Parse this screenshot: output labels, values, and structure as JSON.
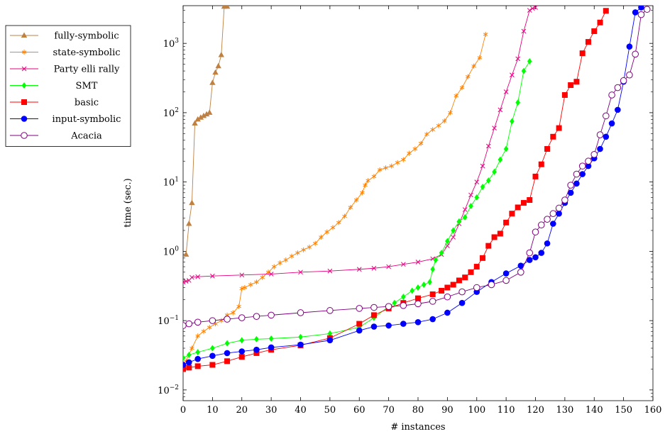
{
  "chart_data": {
    "type": "line",
    "xlabel": "# instances",
    "ylabel": "time (sec.)",
    "x_scale": "linear",
    "y_scale": "log",
    "xlim": [
      0,
      160
    ],
    "ylim": [
      0.007,
      3500
    ],
    "x_ticks": [
      0,
      10,
      20,
      30,
      40,
      50,
      60,
      70,
      80,
      90,
      100,
      110,
      120,
      130,
      140,
      150,
      160
    ],
    "x_tick_labels": [
      "0",
      "10",
      "20",
      "30",
      "40",
      "50",
      "60",
      "70",
      "80",
      "90",
      "100",
      "110",
      "120",
      "130",
      "140",
      "150",
      "160"
    ],
    "y_ticks": [
      0.01,
      0.1,
      1,
      10,
      100,
      1000
    ],
    "y_tick_labels": [
      {
        "base": "10",
        "exp": "−2"
      },
      {
        "base": "10",
        "exp": "−1"
      },
      {
        "base": "10",
        "exp": "0"
      },
      {
        "base": "10",
        "exp": "1"
      },
      {
        "base": "10",
        "exp": "2"
      },
      {
        "base": "10",
        "exp": "3"
      }
    ],
    "grid": false,
    "legend_position": "outside-left-top",
    "series": [
      {
        "name": "fully-symbolic",
        "color": "#bf8040",
        "marker": "triangle",
        "x": [
          1,
          2,
          3,
          4,
          5,
          6,
          7,
          8,
          9,
          10,
          11,
          12,
          13,
          14,
          15
        ],
        "y": [
          0.9,
          2.5,
          5,
          70,
          80,
          85,
          90,
          95,
          100,
          270,
          380,
          470,
          680,
          3400,
          3400
        ]
      },
      {
        "name": "state-symbolic",
        "color": "#ff8000",
        "marker": "asterisk",
        "x": [
          1,
          3,
          5,
          7,
          9,
          11,
          13,
          15,
          17,
          19,
          20,
          21,
          23,
          25,
          27,
          29,
          31,
          33,
          35,
          37,
          39,
          41,
          43,
          45,
          47,
          49,
          51,
          53,
          55,
          57,
          59,
          61,
          62,
          63,
          65,
          67,
          69,
          71,
          73,
          75,
          77,
          79,
          81,
          83,
          85,
          87,
          89,
          91,
          93,
          95,
          97,
          99,
          101,
          103
        ],
        "y": [
          0.026,
          0.04,
          0.06,
          0.07,
          0.08,
          0.09,
          0.1,
          0.12,
          0.13,
          0.16,
          0.29,
          0.3,
          0.33,
          0.36,
          0.42,
          0.5,
          0.6,
          0.68,
          0.75,
          0.85,
          0.95,
          1.05,
          1.15,
          1.3,
          1.6,
          1.9,
          2.2,
          2.6,
          3.2,
          4.3,
          5.5,
          7,
          9,
          10.5,
          12,
          15,
          16,
          17,
          19,
          21,
          26,
          30,
          36,
          49,
          57,
          65,
          76,
          100,
          175,
          230,
          330,
          470,
          620,
          1350
        ]
      },
      {
        "name": "Party elli rally",
        "color": "#e6007e",
        "marker": "cross",
        "x": [
          0,
          1,
          2,
          3,
          5,
          10,
          20,
          30,
          40,
          50,
          60,
          65,
          70,
          75,
          80,
          85,
          88,
          90,
          92,
          94,
          96,
          98,
          100,
          102,
          104,
          106,
          108,
          110,
          112,
          114,
          116,
          118,
          119,
          120
        ],
        "y": [
          0.36,
          0.37,
          0.38,
          0.42,
          0.43,
          0.44,
          0.455,
          0.47,
          0.5,
          0.52,
          0.55,
          0.57,
          0.6,
          0.65,
          0.7,
          0.78,
          0.9,
          1.2,
          1.6,
          2.5,
          4,
          6.5,
          10,
          17,
          33,
          60,
          110,
          200,
          350,
          600,
          1500,
          3000,
          3200,
          3300
        ]
      },
      {
        "name": "SMT",
        "color": "#00ff00",
        "marker": "diamond",
        "x": [
          0,
          2,
          5,
          10,
          15,
          20,
          25,
          30,
          40,
          50,
          60,
          65,
          70,
          72,
          75,
          78,
          80,
          82,
          84,
          85,
          86,
          88,
          90,
          92,
          94,
          96,
          98,
          100,
          102,
          104,
          106,
          108,
          110,
          112,
          114,
          116,
          118
        ],
        "y": [
          0.029,
          0.032,
          0.035,
          0.04,
          0.047,
          0.052,
          0.054,
          0.055,
          0.058,
          0.065,
          0.08,
          0.11,
          0.16,
          0.18,
          0.22,
          0.27,
          0.3,
          0.33,
          0.36,
          0.55,
          0.75,
          0.95,
          1.4,
          2,
          2.7,
          3.1,
          4.5,
          6,
          8.5,
          10.5,
          14,
          21,
          30,
          75,
          140,
          400,
          550
        ]
      },
      {
        "name": "basic",
        "color": "#ff0000",
        "marker": "square",
        "x": [
          0,
          2,
          5,
          10,
          15,
          20,
          25,
          30,
          40,
          50,
          60,
          65,
          70,
          75,
          80,
          85,
          88,
          90,
          92,
          94,
          96,
          98,
          100,
          102,
          104,
          106,
          108,
          110,
          112,
          114,
          116,
          118,
          120,
          122,
          124,
          126,
          128,
          130,
          132,
          134,
          136,
          138,
          140,
          142,
          144
        ],
        "y": [
          0.02,
          0.021,
          0.022,
          0.023,
          0.026,
          0.03,
          0.034,
          0.038,
          0.044,
          0.056,
          0.09,
          0.12,
          0.15,
          0.18,
          0.21,
          0.24,
          0.27,
          0.3,
          0.33,
          0.38,
          0.42,
          0.5,
          0.6,
          0.8,
          1.2,
          1.6,
          1.8,
          2.6,
          3.5,
          4.3,
          5,
          5.5,
          12,
          18,
          30,
          45,
          60,
          180,
          250,
          280,
          720,
          1050,
          1500,
          2000,
          2950
        ]
      },
      {
        "name": "input-symbolic",
        "color": "#0000ff",
        "marker": "circle",
        "x": [
          0,
          2,
          5,
          10,
          15,
          20,
          25,
          30,
          40,
          50,
          60,
          65,
          70,
          75,
          80,
          85,
          90,
          95,
          100,
          105,
          110,
          115,
          118,
          120,
          122,
          124,
          126,
          128,
          130,
          132,
          134,
          136,
          138,
          140,
          142,
          144,
          146,
          148,
          150,
          152,
          154,
          156
        ],
        "y": [
          0.023,
          0.025,
          0.028,
          0.031,
          0.034,
          0.036,
          0.038,
          0.041,
          0.045,
          0.052,
          0.072,
          0.082,
          0.085,
          0.09,
          0.095,
          0.105,
          0.13,
          0.18,
          0.26,
          0.36,
          0.48,
          0.62,
          0.75,
          0.82,
          0.95,
          1.3,
          2.5,
          3.5,
          5,
          7,
          9.5,
          13,
          17,
          22,
          30,
          45,
          70,
          110,
          280,
          900,
          2800,
          3300
        ]
      },
      {
        "name": "Acacia",
        "color": "#800080",
        "marker": "circle-open",
        "x": [
          0,
          2,
          5,
          10,
          15,
          20,
          25,
          30,
          40,
          50,
          60,
          65,
          70,
          75,
          80,
          85,
          90,
          95,
          100,
          105,
          110,
          115,
          118,
          120,
          122,
          124,
          126,
          128,
          130,
          132,
          134,
          136,
          138,
          140,
          142,
          144,
          146,
          148,
          150,
          152,
          154,
          156,
          158
        ],
        "y": [
          0.085,
          0.09,
          0.095,
          0.1,
          0.105,
          0.11,
          0.115,
          0.12,
          0.13,
          0.14,
          0.15,
          0.155,
          0.16,
          0.165,
          0.175,
          0.19,
          0.22,
          0.26,
          0.3,
          0.33,
          0.38,
          0.5,
          0.95,
          1.9,
          2.4,
          2.9,
          3.5,
          4.2,
          5.5,
          9,
          13,
          17,
          20,
          25,
          48,
          90,
          180,
          230,
          290,
          350,
          700,
          2600,
          3100
        ]
      }
    ]
  }
}
